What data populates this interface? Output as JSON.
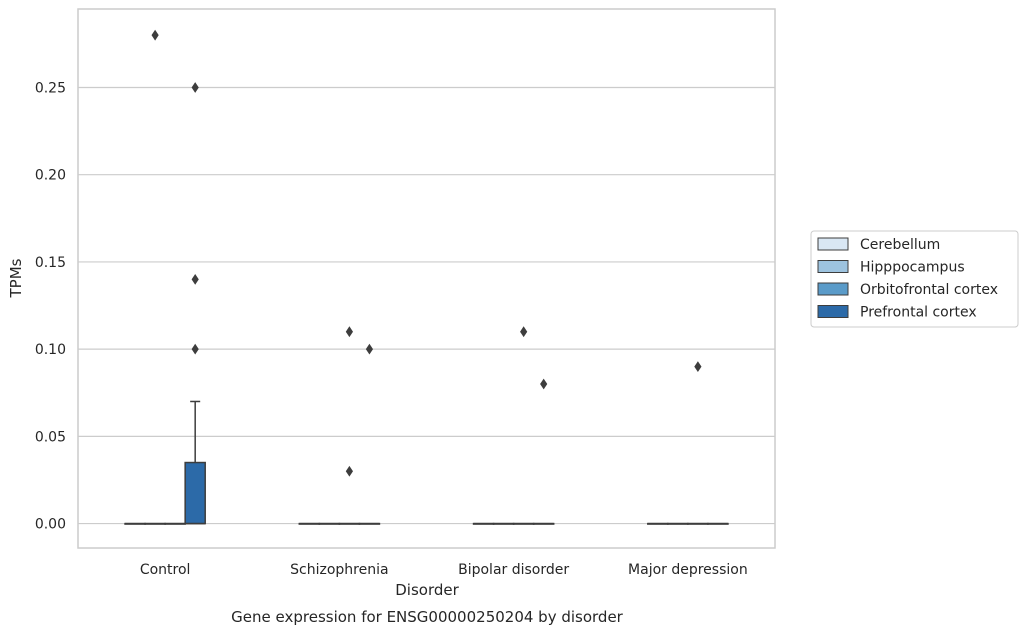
{
  "chart_data": {
    "type": "box",
    "title": "Gene expression for ENSG00000250204 by disorder",
    "xlabel": "Disorder",
    "ylabel": "TPMs",
    "ylim": [
      -0.014,
      0.295
    ],
    "yticks": [
      "0.00",
      "0.05",
      "0.10",
      "0.15",
      "0.20",
      "0.25"
    ],
    "ytick_values": [
      0.0,
      0.05,
      0.1,
      0.15,
      0.2,
      0.25
    ],
    "categories": [
      "Control",
      "Schizophrenia",
      "Bipolar disorder",
      "Major depression"
    ],
    "grid": "horizontal",
    "legend_position": "right",
    "series": [
      {
        "name": "Cerebellum",
        "color": "#d9e7f4",
        "boxes": [
          {
            "q1": 0.0,
            "median": 0.0,
            "q3": 0.0,
            "whisker_low": 0.0,
            "whisker_high": 0.0,
            "outliers": []
          },
          {
            "q1": 0.0,
            "median": 0.0,
            "q3": 0.0,
            "whisker_low": 0.0,
            "whisker_high": 0.0,
            "outliers": []
          },
          {
            "q1": 0.0,
            "median": 0.0,
            "q3": 0.0,
            "whisker_low": 0.0,
            "whisker_high": 0.0,
            "outliers": []
          },
          {
            "q1": 0.0,
            "median": 0.0,
            "q3": 0.0,
            "whisker_low": 0.0,
            "whisker_high": 0.0,
            "outliers": []
          }
        ]
      },
      {
        "name": "Hipppocampus",
        "color": "#9dc3df",
        "boxes": [
          {
            "q1": 0.0,
            "median": 0.0,
            "q3": 0.0,
            "whisker_low": 0.0,
            "whisker_high": 0.0,
            "outliers": [
              0.28
            ]
          },
          {
            "q1": 0.0,
            "median": 0.0,
            "q3": 0.0,
            "whisker_low": 0.0,
            "whisker_high": 0.0,
            "outliers": []
          },
          {
            "q1": 0.0,
            "median": 0.0,
            "q3": 0.0,
            "whisker_low": 0.0,
            "whisker_high": 0.0,
            "outliers": []
          },
          {
            "q1": 0.0,
            "median": 0.0,
            "q3": 0.0,
            "whisker_low": 0.0,
            "whisker_high": 0.0,
            "outliers": []
          }
        ]
      },
      {
        "name": "Orbitofrontal cortex",
        "color": "#5a9bc9",
        "boxes": [
          {
            "q1": 0.0,
            "median": 0.0,
            "q3": 0.0,
            "whisker_low": 0.0,
            "whisker_high": 0.0,
            "outliers": []
          },
          {
            "q1": 0.0,
            "median": 0.0,
            "q3": 0.0,
            "whisker_low": 0.0,
            "whisker_high": 0.0,
            "outliers": [
              0.11,
              0.03
            ]
          },
          {
            "q1": 0.0,
            "median": 0.0,
            "q3": 0.0,
            "whisker_low": 0.0,
            "whisker_high": 0.0,
            "outliers": [
              0.11
            ]
          },
          {
            "q1": 0.0,
            "median": 0.0,
            "q3": 0.0,
            "whisker_low": 0.0,
            "whisker_high": 0.0,
            "outliers": [
              0.09
            ]
          }
        ]
      },
      {
        "name": "Prefrontal cortex",
        "color": "#2c6aa8",
        "boxes": [
          {
            "q1": 0.0,
            "median": 0.0,
            "q3": 0.035,
            "whisker_low": 0.0,
            "whisker_high": 0.07,
            "outliers": [
              0.25,
              0.14,
              0.1
            ]
          },
          {
            "q1": 0.0,
            "median": 0.0,
            "q3": 0.0,
            "whisker_low": 0.0,
            "whisker_high": 0.0,
            "outliers": [
              0.1
            ]
          },
          {
            "q1": 0.0,
            "median": 0.0,
            "q3": 0.0,
            "whisker_low": 0.0,
            "whisker_high": 0.0,
            "outliers": [
              0.08
            ]
          },
          {
            "q1": 0.0,
            "median": 0.0,
            "q3": 0.0,
            "whisker_low": 0.0,
            "whisker_high": 0.0,
            "outliers": []
          }
        ]
      }
    ]
  }
}
